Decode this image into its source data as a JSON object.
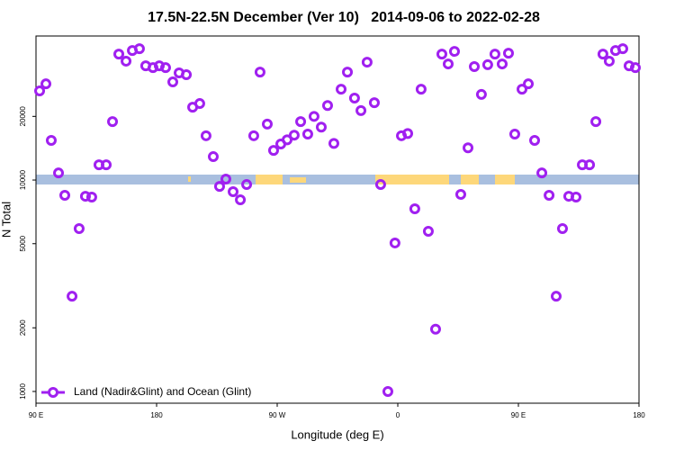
{
  "chart_data": {
    "type": "scatter",
    "title": "17.5N-22.5N December (Ver 10)   2014-09-06 to 2022-02-28",
    "x_label": "Longitude (deg E)",
    "y_label": "N Total",
    "log_y": true,
    "legend_position": "bottom left",
    "xlim": [
      90,
      540
    ],
    "xticks": [
      {
        "value": 90,
        "label": "90 E"
      },
      {
        "value": 180,
        "label": "180"
      },
      {
        "value": 270,
        "label": "90 W"
      },
      {
        "value": 360,
        "label": "0"
      },
      {
        "value": 450,
        "label": "90 E"
      },
      {
        "value": 540,
        "label": "180"
      }
    ],
    "ylim": [
      880,
      48000
    ],
    "yticks": [
      1000,
      2000,
      5000,
      10000,
      20000
    ],
    "series": [
      {
        "name": "Land (Nadir&Glint) and Ocean (Glint)",
        "color": "#a020f0",
        "x": [
          92.7,
          97.4,
          101.4,
          106.8,
          111.5,
          116.9,
          122.2,
          126.9,
          131.6,
          137.0,
          142.4,
          147.1,
          151.8,
          157.2,
          161.9,
          167.2,
          171.9,
          177.3,
          182.0,
          186.7,
          192.1,
          196.8,
          202.2,
          206.9,
          212.2,
          216.9,
          222.3,
          227.0,
          231.7,
          237.1,
          242.5,
          247.2,
          252.5,
          257.2,
          262.6,
          267.3,
          272.7,
          277.4,
          282.7,
          287.5,
          292.8,
          297.5,
          302.9,
          307.6,
          312.3,
          317.7,
          322.4,
          327.7,
          332.5,
          337.1,
          342.5,
          347.2,
          352.6,
          357.9,
          362.7,
          367.4,
          372.7,
          377.4,
          382.8,
          388.2,
          392.9,
          397.6,
          402.3,
          407.0,
          412.4,
          417.1,
          422.4,
          427.1,
          432.5,
          437.9,
          442.6,
          447.3,
          452.7,
          457.4,
          462.1,
          467.5,
          472.9,
          478.2,
          482.9,
          487.6,
          493.0,
          497.7,
          503.1,
          507.8,
          513.1,
          517.8,
          522.5,
          527.9,
          532.6,
          537.3
        ],
        "values": [
          26400,
          28500,
          15400,
          10800,
          8470,
          2820,
          5890,
          8380,
          8300,
          11800,
          11800,
          18900,
          39400,
          36500,
          41000,
          41800,
          34700,
          34000,
          34700,
          34000,
          29100,
          32100,
          31500,
          22100,
          23000,
          16200,
          12900,
          9330,
          10100,
          8810,
          8060,
          9520,
          16200,
          32400,
          18400,
          13800,
          14800,
          15500,
          16300,
          18900,
          16500,
          20000,
          17800,
          22500,
          14900,
          26900,
          32400,
          24400,
          21300,
          36100,
          23200,
          9520,
          1000,
          5040,
          16200,
          16600,
          7310,
          26900,
          5720,
          1970,
          39400,
          35400,
          40600,
          8550,
          14200,
          34400,
          25400,
          35100,
          39400,
          35400,
          39800,
          16500,
          26900,
          28500,
          15400,
          10800,
          8470,
          2820,
          5890,
          8380,
          8300,
          11800,
          11800,
          18900,
          39400,
          36500,
          41000,
          41800,
          34700,
          34000
        ]
      }
    ]
  }
}
